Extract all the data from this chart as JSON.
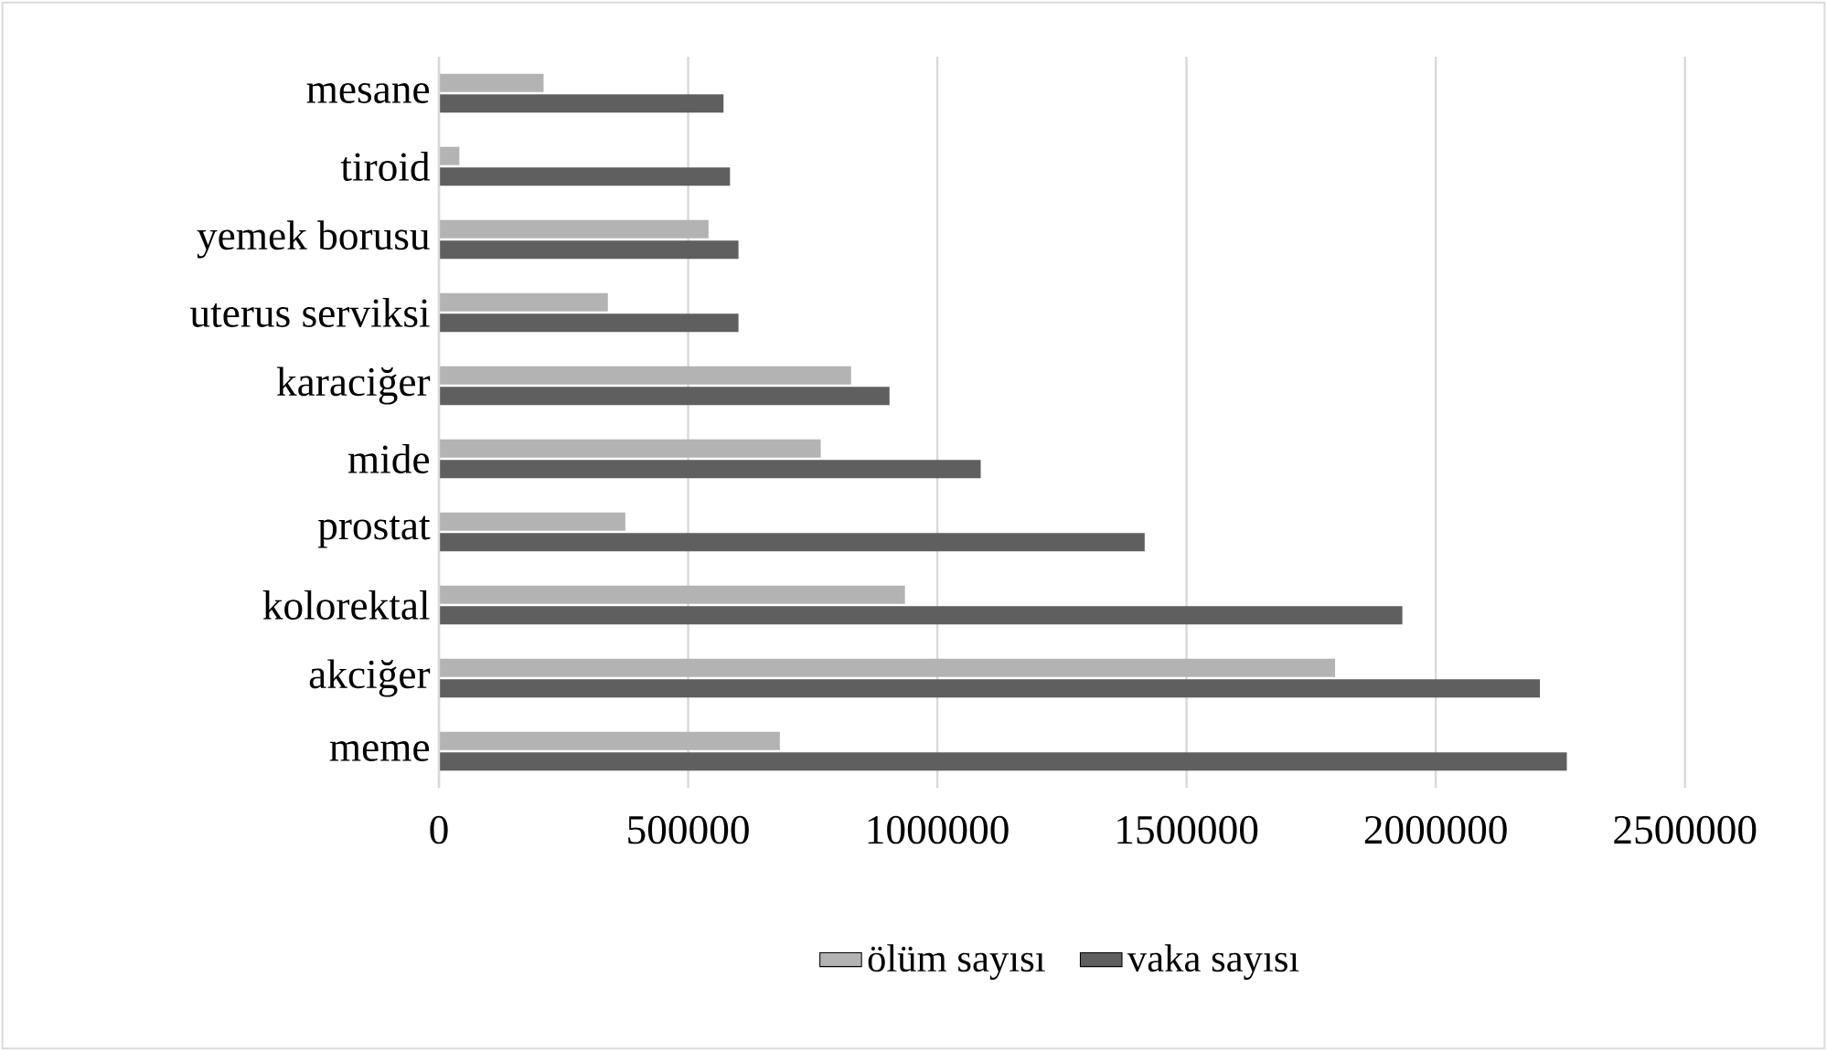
{
  "chart_data": {
    "type": "bar",
    "orientation": "horizontal",
    "categories": [
      "mesane",
      "tiroid",
      "yemek borusu",
      "uterus serviksi",
      "karaciğer",
      "mide",
      "prostat",
      "kolorektal",
      "akciğer",
      "meme"
    ],
    "series": [
      {
        "name": "ölüm sayısı",
        "color": "#b3b3b3",
        "values": [
          210000,
          41000,
          541000,
          339000,
          827000,
          766000,
          374000,
          935000,
          1798000,
          684000
        ]
      },
      {
        "name": "vaka sayısı",
        "color": "#5f5f5f",
        "values": [
          571000,
          584000,
          601000,
          601000,
          904000,
          1087000,
          1416000,
          1933000,
          2209000,
          2263000
        ]
      }
    ],
    "xlim": [
      0,
      2500000
    ],
    "xticks": [
      0,
      500000,
      1000000,
      1500000,
      2000000,
      2500000
    ],
    "grid": "x",
    "legend": "bottom"
  }
}
